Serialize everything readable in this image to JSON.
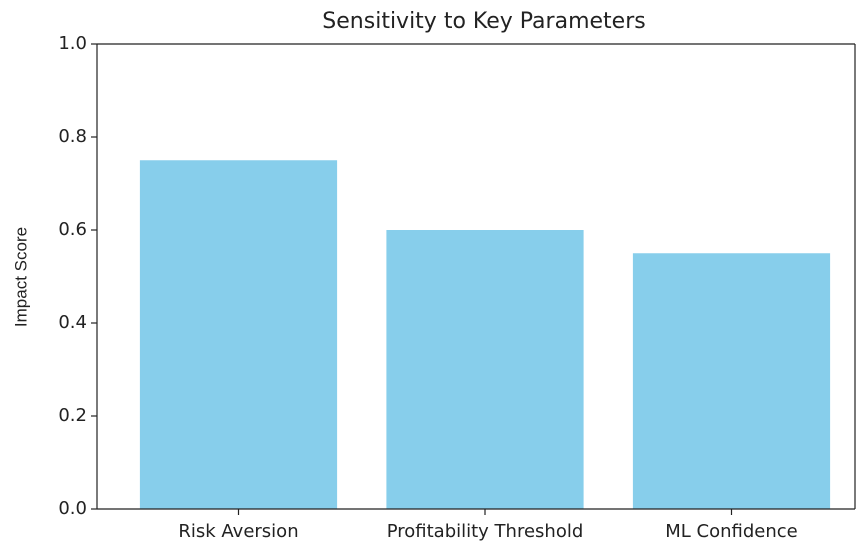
{
  "chart_data": {
    "type": "bar",
    "title": "Sensitivity to Key Parameters",
    "y_label": "Impact Score",
    "categories": [
      "Risk Aversion",
      "Profitability Threshold",
      "ML Confidence"
    ],
    "values": [
      0.75,
      0.6,
      0.55
    ],
    "color": "#87ceeb",
    "ylim": [
      0,
      1
    ],
    "yticks": [
      {
        "value": 0,
        "label": "0.0"
      },
      0.2,
      0.4,
      0.6,
      0.8,
      {
        "value": 1,
        "label": "1.0"
      }
    ],
    "grid": false
  }
}
